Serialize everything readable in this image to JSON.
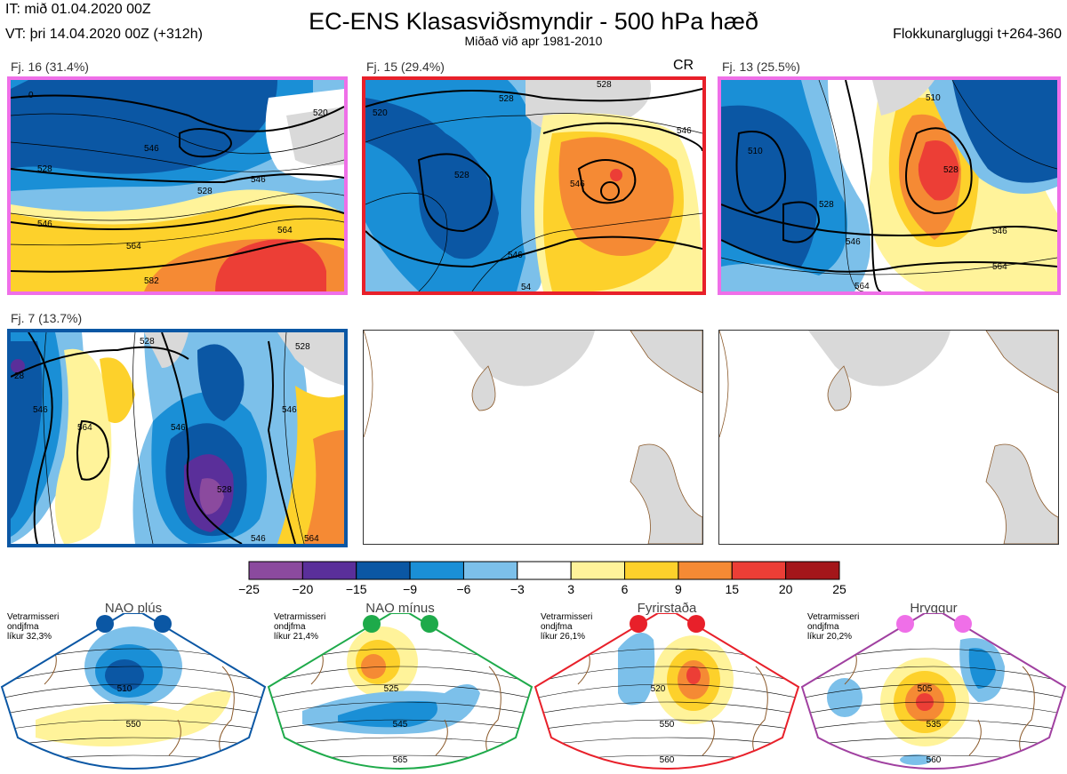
{
  "header": {
    "init_time": "IT: mið 01.04.2020 00Z",
    "valid_time": "VT: þri 14.04.2020 00Z  (+312h)",
    "title": "EC-ENS Klasasviðsmyndir - 500 hPa hæð",
    "subtitle": "Miðað við apr 1981-2010",
    "window": "Flokkunargluggi t+264-360"
  },
  "colors": {
    "neg25": "#8b4a9e",
    "neg20": "#5a2f9a",
    "neg15": "#0b57a4",
    "neg9": "#1a8fd6",
    "neg6": "#7cc0ea",
    "neu": "#ffffff",
    "pos3": "#fff39a",
    "pos6": "#fdd12b",
    "pos9": "#f58a34",
    "pos15": "#ec3e36",
    "pos20": "#a4161a",
    "land": "#d9d9d9",
    "coast": "#8b5a2b",
    "nao_plus": "#0b57a4",
    "nao_minus": "#1eaa4a",
    "blocking": "#e8202a",
    "ridge": "#ef6fe8"
  },
  "panels": [
    {
      "label": "Fj. 16 (31.4%)",
      "border": "#ef6fe8",
      "cluster": 16,
      "percent": 31.4
    },
    {
      "label": "Fj. 15 (29.4%)",
      "border": "#e8202a",
      "cluster": 15,
      "percent": 29.4,
      "tag": "CR"
    },
    {
      "label": "Fj. 13 (25.5%)",
      "border": "#ef6fe8",
      "cluster": 13,
      "percent": 25.5
    },
    {
      "label": "Fj. 7 (13.7%)",
      "border": "#0b57a4",
      "cluster": 7,
      "percent": 13.7
    }
  ],
  "contour_labels": {
    "p16": [
      "528",
      "546",
      "528",
      "520",
      "546",
      "546",
      "564",
      "564",
      "582",
      "0"
    ],
    "p15": [
      "528",
      "528",
      "546",
      "528",
      "546",
      "546",
      "54",
      "520"
    ],
    "p13": [
      "510",
      "528",
      "528",
      "546",
      "564",
      "546",
      "564",
      "510"
    ],
    "p7": [
      "528",
      "546",
      "564",
      "546",
      "528",
      "528",
      "546",
      "564",
      "546",
      "28"
    ]
  },
  "chart_data": {
    "type": "heatmap",
    "title": "EC-ENS Klasasviðsmyndir - 500 hPa hæð",
    "colorbar": {
      "ticks": [
        "−25",
        "−20",
        "−15",
        "−9",
        "−6",
        "−3",
        "3",
        "6",
        "9",
        "15",
        "20",
        "25"
      ],
      "bin_colors": [
        "#8b4a9e",
        "#5a2f9a",
        "#0b57a4",
        "#1a8fd6",
        "#7cc0ea",
        "#ffffff",
        "#fff39a",
        "#fdd12b",
        "#f58a34",
        "#ec3e36",
        "#a4161a"
      ]
    },
    "clusters": [
      {
        "cluster": 16,
        "probability": 31.4,
        "regime": "Hryggur"
      },
      {
        "cluster": 15,
        "probability": 29.4,
        "regime": "Fyrirstaða"
      },
      {
        "cluster": 13,
        "probability": 25.5,
        "regime": "Hryggur"
      },
      {
        "cluster": 7,
        "probability": 13.7,
        "regime": "NAO plús"
      }
    ]
  },
  "regimes": [
    {
      "name": "NAO plús",
      "note": [
        "Vetrarmisseri",
        "ondjfma",
        "líkur 32,3%"
      ],
      "color": "#0b57a4",
      "labels": [
        "510",
        "550"
      ]
    },
    {
      "name": "NAO mínus",
      "note": [
        "Vetrarmisseri",
        "ondjfma",
        "líkur 21,4%"
      ],
      "color": "#1eaa4a",
      "labels": [
        "525",
        "545",
        "565"
      ]
    },
    {
      "name": "Fyrirstaða",
      "note": [
        "Vetrarmisseri",
        "ondjfma",
        "líkur 26,1%"
      ],
      "color": "#e8202a",
      "labels": [
        "520",
        "550",
        "560"
      ]
    },
    {
      "name": "Hryggur",
      "note": [
        "Vetrarmisseri",
        "ondjfma",
        "líkur 20,2%"
      ],
      "color": "#a040a0",
      "dot_color": "#ef6fe8",
      "labels": [
        "505",
        "535",
        "560"
      ]
    }
  ]
}
